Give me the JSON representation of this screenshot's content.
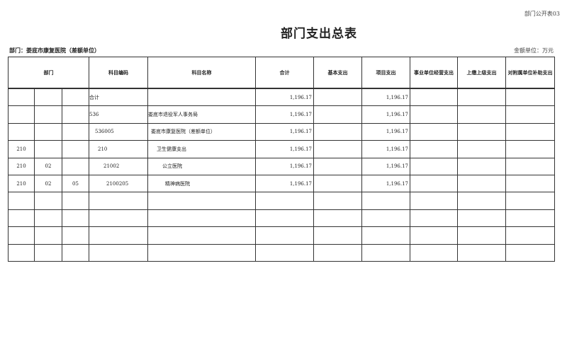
{
  "form_code": "部门公开表03",
  "title": "部门支出总表",
  "department_label": "部门：娄底市康复医院（差额单位）",
  "unit_label": "金额单位：万元",
  "headers": [
    "部门",
    "科目编码",
    "科目名称",
    "合计",
    "基本支出",
    "项目支出",
    "事业单位经营支出",
    "上缴上级支出",
    "对附属单位补助支出"
  ],
  "rows": [
    {
      "d1": "",
      "d2": "",
      "d3": "",
      "code": "合计",
      "name": "",
      "total": "1,196.17",
      "basic": "",
      "project": "1,196.17",
      "business": "",
      "upper": "",
      "subsidy": ""
    },
    {
      "d1": "",
      "d2": "",
      "d3": "",
      "code": "536",
      "name": "娄底市退役军人事务局",
      "total": "1,196.17",
      "basic": "",
      "project": "1,196.17",
      "business": "",
      "upper": "",
      "subsidy": ""
    },
    {
      "d1": "",
      "d2": "",
      "d3": "",
      "code": "536005",
      "name": "娄底市康复医院（差额单位）",
      "total": "1,196.17",
      "basic": "",
      "project": "1,196.17",
      "business": "",
      "upper": "",
      "subsidy": ""
    },
    {
      "d1": "210",
      "d2": "",
      "d3": "",
      "code": "210",
      "name": "卫生健康支出",
      "total": "1,196.17",
      "basic": "",
      "project": "1,196.17",
      "business": "",
      "upper": "",
      "subsidy": ""
    },
    {
      "d1": "210",
      "d2": "02",
      "d3": "",
      "code": "21002",
      "name": "公立医院",
      "total": "1,196.17",
      "basic": "",
      "project": "1,196.17",
      "business": "",
      "upper": "",
      "subsidy": ""
    },
    {
      "d1": "210",
      "d2": "02",
      "d3": "05",
      "code": "2100205",
      "name": "精神病医院",
      "total": "1,196.17",
      "basic": "",
      "project": "1,196.17",
      "business": "",
      "upper": "",
      "subsidy": ""
    },
    {
      "d1": "",
      "d2": "",
      "d3": "",
      "code": "",
      "name": "",
      "total": "",
      "basic": "",
      "project": "",
      "business": "",
      "upper": "",
      "subsidy": ""
    },
    {
      "d1": "",
      "d2": "",
      "d3": "",
      "code": "",
      "name": "",
      "total": "",
      "basic": "",
      "project": "",
      "business": "",
      "upper": "",
      "subsidy": ""
    },
    {
      "d1": "",
      "d2": "",
      "d3": "",
      "code": "",
      "name": "",
      "total": "",
      "basic": "",
      "project": "",
      "business": "",
      "upper": "",
      "subsidy": ""
    },
    {
      "d1": "",
      "d2": "",
      "d3": "",
      "code": "",
      "name": "",
      "total": "",
      "basic": "",
      "project": "",
      "business": "",
      "upper": "",
      "subsidy": ""
    }
  ]
}
